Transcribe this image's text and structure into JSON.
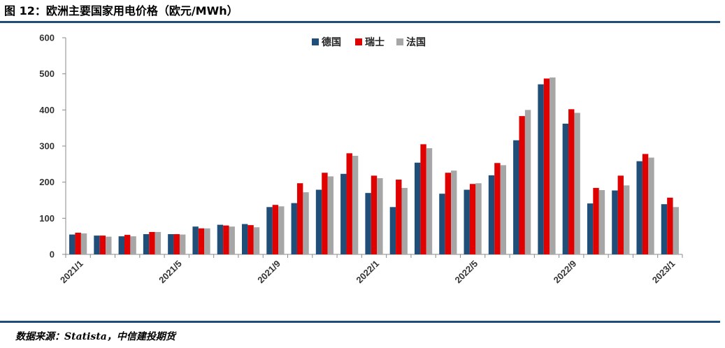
{
  "header": {
    "title": "图 12：欧洲主要国家用电价格（欧元/MWh）"
  },
  "footer": {
    "source": "数据来源：Statista，中信建投期货"
  },
  "colors": {
    "accent_rule": "#1f4e79",
    "axis": "#888888"
  },
  "chart_data": {
    "type": "bar",
    "title": "",
    "xlabel": "",
    "ylabel": "",
    "ylim": [
      0,
      600
    ],
    "yticks": [
      0,
      100,
      200,
      300,
      400,
      500,
      600
    ],
    "grid": false,
    "legend_position": "top-center",
    "categories": [
      "2021/1",
      "2021/2",
      "2021/3",
      "2021/4",
      "2021/5",
      "2021/6",
      "2021/7",
      "2021/8",
      "2021/9",
      "2021/10",
      "2021/11",
      "2021/12",
      "2022/1",
      "2022/2",
      "2022/3",
      "2022/4",
      "2022/5",
      "2022/6",
      "2022/7",
      "2022/8",
      "2022/9",
      "2022/10",
      "2022/11",
      "2022/12",
      "2023/1"
    ],
    "tick_labels": [
      "2021/1",
      "",
      "",
      "",
      "2021/5",
      "",
      "",
      "",
      "2021/9",
      "",
      "",
      "",
      "2022/1",
      "",
      "",
      "",
      "2022/5",
      "",
      "",
      "",
      "2022/9",
      "",
      "",
      "",
      "2023/1"
    ],
    "series": [
      {
        "name": "德国",
        "color": "#1f4e79",
        "values": [
          55,
          52,
          50,
          56,
          56,
          77,
          82,
          84,
          131,
          142,
          179,
          223,
          170,
          131,
          254,
          168,
          179,
          219,
          316,
          471,
          362,
          141,
          177,
          258,
          139
        ]
      },
      {
        "name": "瑞士",
        "color": "#e00000",
        "values": [
          60,
          52,
          54,
          62,
          56,
          72,
          80,
          81,
          137,
          197,
          226,
          280,
          218,
          207,
          305,
          226,
          195,
          253,
          383,
          487,
          402,
          184,
          218,
          278,
          157
        ]
      },
      {
        "name": "法国",
        "color": "#a6a6a6",
        "values": [
          58,
          49,
          50,
          62,
          55,
          72,
          77,
          75,
          133,
          172,
          216,
          273,
          211,
          184,
          294,
          232,
          197,
          247,
          400,
          490,
          392,
          178,
          191,
          268,
          131
        ]
      }
    ]
  }
}
